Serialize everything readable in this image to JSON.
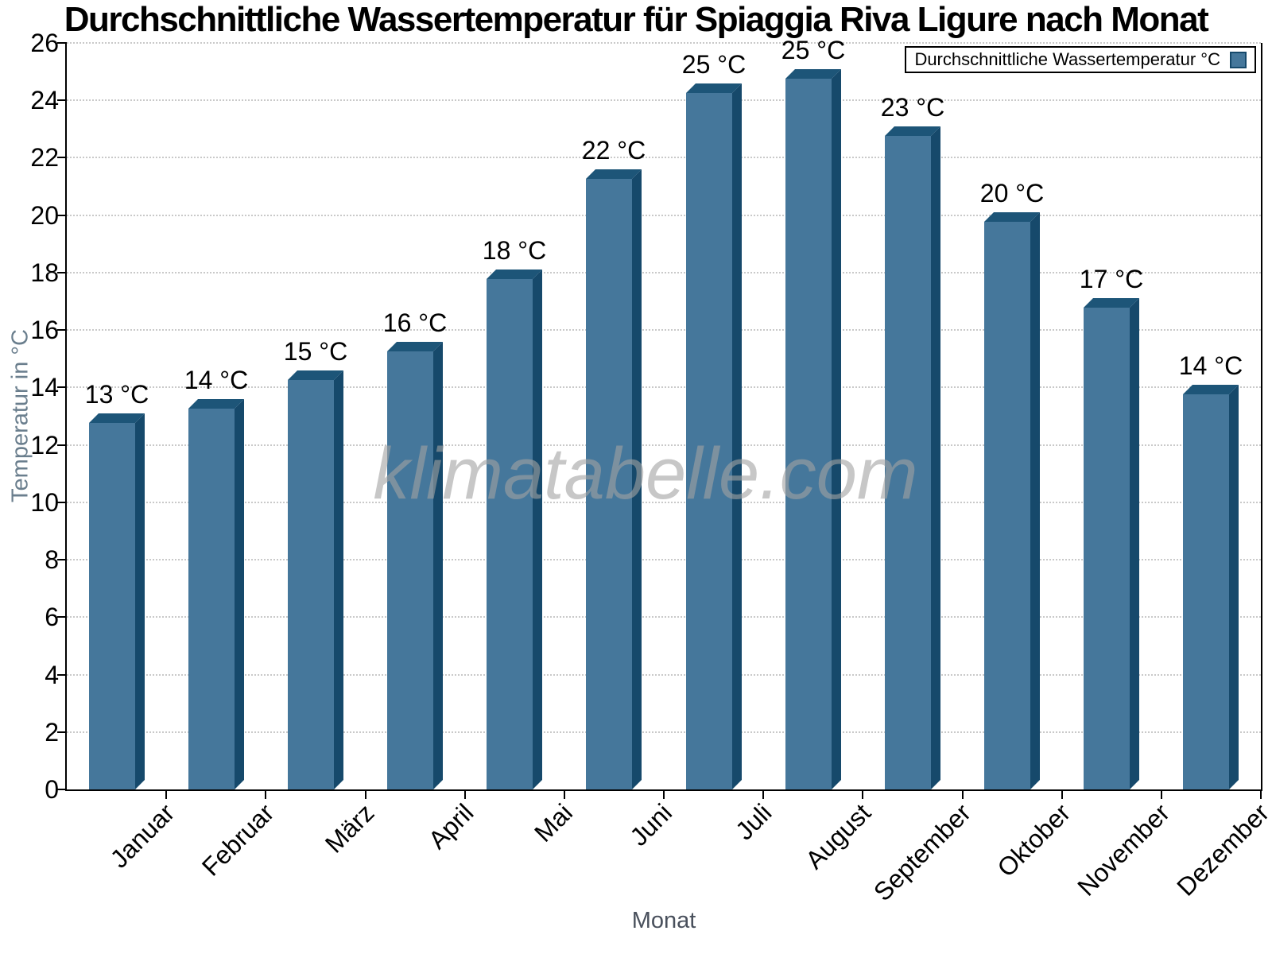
{
  "title": "Durchschnittliche Wassertemperatur für Spiaggia Riva Ligure nach Monat",
  "legend": {
    "label": "Durchschnittliche Wassertemperatur °C"
  },
  "watermark": "klimatabelle.com",
  "colors": {
    "bar_face": "#45779B",
    "bar_side": "#16496B",
    "bar_top": "#1D5578",
    "grid": "#c9c9c9",
    "axis": "#000000",
    "y_axis_title": "#6a7e8d",
    "x_axis_title": "#49505c",
    "watermark": "#a3a3a3"
  },
  "chart_data": {
    "type": "bar",
    "title": "Durchschnittliche Wassertemperatur für Spiaggia Riva Ligure nach Monat",
    "xlabel": "Monat",
    "ylabel": "Temperatur in °C",
    "categories": [
      "Januar",
      "Februar",
      "März",
      "April",
      "Mai",
      "Juni",
      "Juli",
      "August",
      "September",
      "Oktober",
      "November",
      "Dezember"
    ],
    "values": [
      13.1,
      13.6,
      14.6,
      15.6,
      18.1,
      21.6,
      24.6,
      25.1,
      23.1,
      20.1,
      17.1,
      14.1
    ],
    "labels": [
      "13 °C",
      "14 °C",
      "15 °C",
      "16 °C",
      "18 °C",
      "22 °C",
      "25 °C",
      "25 °C",
      "23 °C",
      "20 °C",
      "17 °C",
      "14 °C"
    ],
    "series_name": "Durchschnittliche Wassertemperatur °C",
    "ylim": [
      0,
      26
    ],
    "ytick_step": 2,
    "grid": "horizontal-dotted",
    "legend_position": "top-right",
    "bar_style": "3d"
  }
}
